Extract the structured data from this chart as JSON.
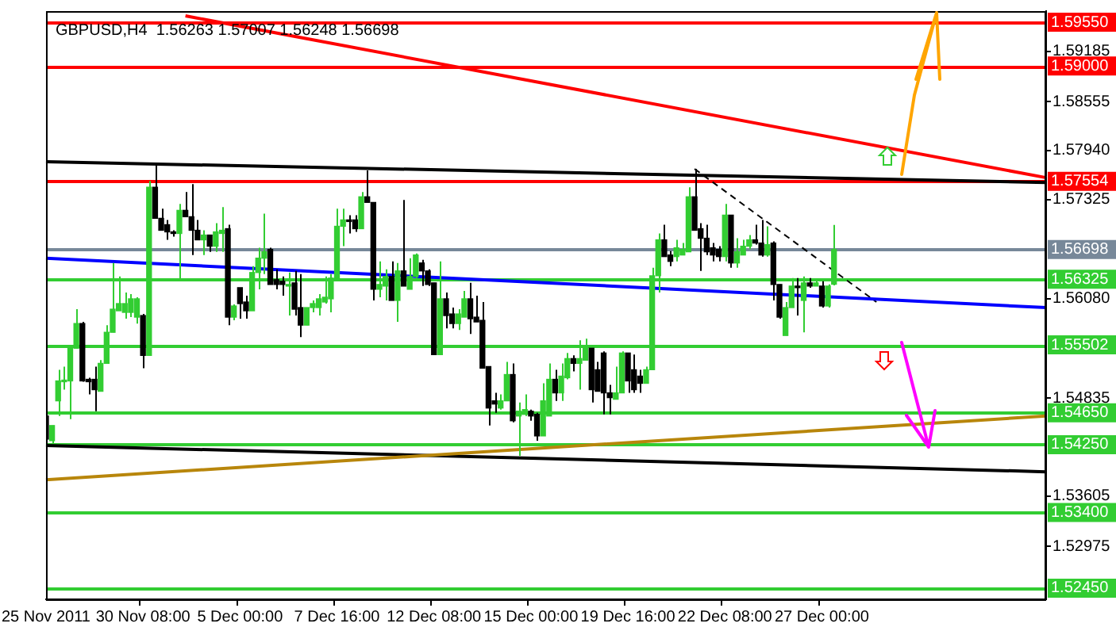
{
  "chart_data": {
    "type": "candlestick",
    "title": "GBPUSD,H4  1.56263 1.57007 1.56248 1.56698",
    "categories": [
      "25 Nov 2011",
      null,
      null,
      null,
      null,
      null,
      null,
      null,
      null,
      null,
      null,
      null,
      null,
      null,
      null,
      null,
      "30 Nov 08:00",
      null,
      null,
      null,
      null,
      null,
      null,
      null,
      null,
      null,
      null,
      null,
      null,
      null,
      null,
      null,
      "5 Dec 00:00",
      null,
      null,
      null,
      null,
      null,
      null,
      null,
      null,
      null,
      null,
      null,
      null,
      null,
      null,
      null,
      "7 Dec 16:00",
      null,
      null,
      null,
      null,
      null,
      null,
      null,
      null,
      null,
      null,
      null,
      null,
      null,
      null,
      null,
      "12 Dec 08:00",
      null,
      null,
      null,
      null,
      null,
      null,
      null,
      null,
      null,
      null,
      null,
      null,
      null,
      null,
      null,
      "15 Dec 00:00",
      null,
      null,
      null,
      null,
      null,
      null,
      null,
      null,
      null,
      null,
      null,
      null,
      null,
      null,
      null,
      "19 Dec 16:00",
      null,
      null,
      null,
      null,
      null,
      null,
      null,
      null,
      null,
      null,
      null,
      null,
      null,
      null,
      null,
      "22 Dec 08:00",
      null,
      null,
      null,
      null,
      null,
      null,
      null,
      null,
      null,
      null,
      null,
      null,
      null,
      null,
      null,
      "27 Dec 00:00",
      null,
      null,
      null,
      null,
      null,
      null,
      null,
      null,
      null,
      null,
      null,
      null,
      null,
      null,
      null,
      null,
      null,
      null,
      null,
      null,
      null,
      null,
      null,
      null,
      null,
      null,
      null,
      null,
      null,
      null,
      null,
      null,
      null,
      null,
      null,
      null,
      null
    ],
    "ohlc": [
      [
        1.5461,
        1.5517,
        1.5428,
        1.5432
      ],
      [
        1.543,
        1.5449,
        1.5426,
        1.5449
      ],
      [
        1.548,
        1.5519,
        1.5461,
        1.5505
      ],
      [
        1.5504,
        1.5523,
        1.5494,
        1.5505
      ],
      [
        1.5505,
        1.5546,
        1.5457,
        1.5546
      ],
      [
        1.5546,
        1.5595,
        1.5546,
        1.5577
      ],
      [
        1.5577,
        1.5579,
        1.5504,
        1.5505
      ],
      [
        1.5507,
        1.5509,
        1.5488,
        1.5504
      ],
      [
        1.5507,
        1.5523,
        1.5467,
        1.5494
      ],
      [
        1.5492,
        1.5531,
        1.5492,
        1.5527
      ],
      [
        1.5527,
        1.5575,
        1.5527,
        1.5566
      ],
      [
        1.5566,
        1.5653,
        1.5566,
        1.5595
      ],
      [
        1.5593,
        1.5636,
        1.5593,
        1.5602
      ],
      [
        1.5591,
        1.5616,
        1.5583,
        1.5602
      ],
      [
        1.5591,
        1.5614,
        1.5585,
        1.5608
      ],
      [
        1.5585,
        1.561,
        1.5577,
        1.5608
      ],
      [
        1.5587,
        1.5589,
        1.5521,
        1.5537
      ],
      [
        1.5537,
        1.5756,
        1.5537,
        1.5748
      ],
      [
        1.5748,
        1.5779,
        1.5709,
        1.5709
      ],
      [
        1.5709,
        1.5721,
        1.5694,
        1.5694
      ],
      [
        1.5701,
        1.5707,
        1.5682,
        1.5692
      ],
      [
        1.5692,
        1.5694,
        1.5686,
        1.569
      ],
      [
        1.569,
        1.5727,
        1.5632,
        1.5719
      ],
      [
        1.5719,
        1.5742,
        1.5711,
        1.5711
      ],
      [
        1.5711,
        1.5752,
        1.5663,
        1.5694
      ],
      [
        1.5694,
        1.5707,
        1.5682,
        1.5682
      ],
      [
        1.5682,
        1.5694,
        1.5663,
        1.5688
      ],
      [
        1.5688,
        1.5688,
        1.5667,
        1.5674
      ],
      [
        1.5674,
        1.5703,
        1.5667,
        1.5692
      ],
      [
        1.569,
        1.5723,
        1.5667,
        1.5694
      ],
      [
        1.5696,
        1.5701,
        1.5575,
        1.5585
      ],
      [
        1.5585,
        1.5601,
        1.5581,
        1.5599
      ],
      [
        1.5622,
        1.5622,
        1.5583,
        1.5602
      ],
      [
        1.5604,
        1.5612,
        1.5583,
        1.5593
      ],
      [
        1.5593,
        1.5649,
        1.5593,
        1.5641
      ],
      [
        1.5641,
        1.5672,
        1.562,
        1.5659
      ],
      [
        1.5659,
        1.5715,
        1.5639,
        1.5667
      ],
      [
        1.567,
        1.5672,
        1.5626,
        1.5626
      ],
      [
        1.5632,
        1.5645,
        1.562,
        1.5626
      ],
      [
        1.563,
        1.5636,
        1.5612,
        1.5626
      ],
      [
        1.5624,
        1.5641,
        1.5587,
        1.5626
      ],
      [
        1.5628,
        1.5643,
        1.5587,
        1.5595
      ],
      [
        1.5597,
        1.5639,
        1.556,
        1.5575
      ],
      [
        1.5575,
        1.5597,
        1.5575,
        1.5597
      ],
      [
        1.5597,
        1.5606,
        1.5591,
        1.5602
      ],
      [
        1.5597,
        1.5614,
        1.5587,
        1.5608
      ],
      [
        1.5604,
        1.5636,
        1.5602,
        1.561
      ],
      [
        1.5608,
        1.5639,
        1.5591,
        1.5634
      ],
      [
        1.5634,
        1.5721,
        1.563,
        1.5699
      ],
      [
        1.5699,
        1.5721,
        1.5674,
        1.5707
      ],
      [
        1.5707,
        1.5713,
        1.569,
        1.5705
      ],
      [
        1.5707,
        1.5713,
        1.5692,
        1.5696
      ],
      [
        1.5696,
        1.5742,
        1.5696,
        1.5736
      ],
      [
        1.5736,
        1.5769,
        1.5729,
        1.5729
      ],
      [
        1.5729,
        1.5729,
        1.5606,
        1.562
      ],
      [
        1.562,
        1.5655,
        1.561,
        1.5626
      ],
      [
        1.5624,
        1.5645,
        1.5606,
        1.5636
      ],
      [
        1.5636,
        1.5655,
        1.5606,
        1.5606
      ],
      [
        1.5606,
        1.5653,
        1.5579,
        1.5643
      ],
      [
        1.5643,
        1.5732,
        1.5624,
        1.5624
      ],
      [
        1.562,
        1.5659,
        1.562,
        1.5636
      ],
      [
        1.5636,
        1.5665,
        1.5634,
        1.5663
      ],
      [
        1.5653,
        1.5657,
        1.5624,
        1.5643
      ],
      [
        1.5643,
        1.5645,
        1.5624,
        1.5626
      ],
      [
        1.5628,
        1.5628,
        1.5538,
        1.5538
      ],
      [
        1.5538,
        1.5655,
        1.5538,
        1.5608
      ],
      [
        1.5608,
        1.5616,
        1.5571,
        1.5587
      ],
      [
        1.5589,
        1.5597,
        1.5571,
        1.5577
      ],
      [
        1.5577,
        1.5595,
        1.5569,
        1.5589
      ],
      [
        1.5585,
        1.5618,
        1.5585,
        1.5608
      ],
      [
        1.5608,
        1.5628,
        1.5564,
        1.5583
      ],
      [
        1.5585,
        1.5612,
        1.5579,
        1.5579
      ],
      [
        1.5581,
        1.5604,
        1.5521,
        1.5521
      ],
      [
        1.5523,
        1.5523,
        1.5449,
        1.5471
      ],
      [
        1.548,
        1.549,
        1.5465,
        1.5476
      ],
      [
        1.5471,
        1.5488,
        1.5469,
        1.548
      ],
      [
        1.548,
        1.5529,
        1.548,
        1.5513
      ],
      [
        1.5513,
        1.5527,
        1.5453,
        1.5455
      ],
      [
        1.5461,
        1.5478,
        1.5411,
        1.5467
      ],
      [
        1.5463,
        1.5488,
        1.5461,
        1.5469
      ],
      [
        1.5467,
        1.5469,
        1.5455,
        1.5461
      ],
      [
        1.5463,
        1.5465,
        1.543,
        1.5436
      ],
      [
        1.5436,
        1.5502,
        1.5436,
        1.548
      ],
      [
        1.5461,
        1.5527,
        1.5461,
        1.5507
      ],
      [
        1.5507,
        1.5519,
        1.548,
        1.549
      ],
      [
        1.549,
        1.5527,
        1.548,
        1.5511
      ],
      [
        1.5509,
        1.554,
        1.5507,
        1.5533
      ],
      [
        1.5533,
        1.5537,
        1.5517,
        1.5527
      ],
      [
        1.5527,
        1.5556,
        1.5494,
        1.5533
      ],
      [
        1.5531,
        1.5558,
        1.5531,
        1.5546
      ],
      [
        1.5546,
        1.5546,
        1.5478,
        1.5494
      ],
      [
        1.5519,
        1.5529,
        1.5492,
        1.5492
      ],
      [
        1.554,
        1.5542,
        1.5463,
        1.549
      ],
      [
        1.549,
        1.55,
        1.5463,
        1.5484
      ],
      [
        1.5482,
        1.5523,
        1.5482,
        1.549
      ],
      [
        1.549,
        1.5542,
        1.549,
        1.554
      ],
      [
        1.554,
        1.554,
        1.549,
        1.5505
      ],
      [
        1.5519,
        1.5538,
        1.549,
        1.5494
      ],
      [
        1.5511,
        1.5519,
        1.549,
        1.5502
      ],
      [
        1.5502,
        1.5523,
        1.5502,
        1.5519
      ],
      [
        1.5519,
        1.5647,
        1.5519,
        1.5637
      ],
      [
        1.5637,
        1.569,
        1.5616,
        1.5682
      ],
      [
        1.5682,
        1.5701,
        1.5661,
        1.5661
      ],
      [
        1.5663,
        1.5668,
        1.5649,
        1.5655
      ],
      [
        1.5661,
        1.5682,
        1.5655,
        1.5672
      ],
      [
        1.5663,
        1.5678,
        1.5663,
        1.567
      ],
      [
        1.5667,
        1.5748,
        1.5667,
        1.5736
      ],
      [
        1.5736,
        1.5771,
        1.5694,
        1.5694
      ],
      [
        1.5696,
        1.5703,
        1.5643,
        1.5684
      ],
      [
        1.5684,
        1.5701,
        1.5663,
        1.5667
      ],
      [
        1.5672,
        1.5678,
        1.5655,
        1.5663
      ],
      [
        1.567,
        1.5674,
        1.5655,
        1.5661
      ],
      [
        1.5661,
        1.5727,
        1.5655,
        1.5713
      ],
      [
        1.5713,
        1.5713,
        1.5647,
        1.5653
      ],
      [
        1.5653,
        1.5684,
        1.5647,
        1.5667
      ],
      [
        1.5663,
        1.5682,
        1.5663,
        1.5674
      ],
      [
        1.5674,
        1.5688,
        1.567,
        1.5682
      ],
      [
        1.5682,
        1.5701,
        1.5676,
        1.5678
      ],
      [
        1.5678,
        1.5707,
        1.5661,
        1.5663
      ],
      [
        1.5663,
        1.5699,
        1.5661,
        1.5676
      ],
      [
        1.5678,
        1.568,
        1.5606,
        1.5626
      ],
      [
        1.5626,
        1.5626,
        1.5583,
        1.5585
      ],
      [
        1.5562,
        1.5604,
        1.5562,
        1.5597
      ],
      [
        1.5597,
        1.5634,
        1.5597,
        1.5624
      ],
      [
        1.5624,
        1.5634,
        1.5587,
        1.5622
      ],
      [
        1.5606,
        1.5636,
        1.5566,
        1.5628
      ],
      [
        1.5628,
        1.5634,
        1.5622,
        1.5624
      ],
      [
        1.5624,
        1.563,
        1.5624,
        1.5628
      ],
      [
        1.5624,
        1.563,
        1.5597,
        1.5599
      ],
      [
        1.5599,
        1.5626,
        1.5597,
        1.5624
      ],
      [
        1.56263,
        1.57007,
        1.56248,
        1.56698
      ],
      null,
      null,
      null,
      null,
      null,
      null,
      null,
      null,
      null,
      null,
      null,
      null,
      null,
      null,
      null,
      null,
      null,
      null,
      null,
      null,
      null,
      null,
      null,
      null,
      null,
      null,
      null,
      null,
      null,
      null,
      null,
      null,
      null,
      null,
      null
    ],
    "colors": [
      "#000000",
      "#32cd32",
      "#32cd32",
      "#32cd32",
      "#32cd32",
      "#32cd32",
      "#000000",
      "#000000",
      "#000000",
      "#32cd32",
      "#32cd32",
      "#32cd32",
      "#32cd32",
      "#32cd32",
      "#32cd32",
      "#32cd32",
      "#000000",
      "#32cd32",
      "#000000",
      "#000000",
      "#000000",
      "#000000",
      "#32cd32",
      "#000000",
      "#000000",
      "#000000",
      "#32cd32",
      "#000000",
      "#32cd32",
      "#32cd32",
      "#000000",
      "#32cd32",
      "#000000",
      "#000000",
      "#32cd32",
      "#32cd32",
      "#32cd32",
      "#000000",
      "#000000",
      "#000000",
      "#32cd32",
      "#000000",
      "#000000",
      "#32cd32",
      "#32cd32",
      "#32cd32",
      "#32cd32",
      "#32cd32",
      "#32cd32",
      "#32cd32",
      "#000000",
      "#000000",
      "#32cd32",
      "#000000",
      "#000000",
      "#32cd32",
      "#32cd32",
      "#000000",
      "#32cd32",
      "#000000",
      "#32cd32",
      "#32cd32",
      "#000000",
      "#000000",
      "#000000",
      "#32cd32",
      "#000000",
      "#000000",
      "#32cd32",
      "#32cd32",
      "#000000",
      "#000000",
      "#000000",
      "#000000",
      "#000000",
      "#32cd32",
      "#32cd32",
      "#000000",
      "#32cd32",
      "#32cd32",
      "#000000",
      "#000000",
      "#32cd32",
      "#32cd32",
      "#000000",
      "#32cd32",
      "#32cd32",
      "#000000",
      "#32cd32",
      "#32cd32",
      "#000000",
      "#000000",
      "#000000",
      "#000000",
      "#32cd32",
      "#32cd32",
      "#000000",
      "#000000",
      "#000000",
      "#32cd32",
      "#32cd32",
      "#32cd32",
      "#000000",
      "#000000",
      "#32cd32",
      "#32cd32",
      "#32cd32",
      "#000000",
      "#000000",
      "#000000",
      "#000000",
      "#000000",
      "#32cd32",
      "#000000",
      "#32cd32",
      "#32cd32",
      "#32cd32",
      "#000000",
      "#000000",
      "#32cd32",
      "#000000",
      "#000000",
      "#32cd32",
      "#32cd32",
      "#000000",
      "#32cd32",
      "#000000",
      "#32cd32",
      "#000000",
      "#32cd32",
      "#32cd32",
      null,
      null,
      null,
      null,
      null,
      null,
      null,
      null,
      null,
      null,
      null,
      null,
      null,
      null,
      null,
      null,
      null,
      null,
      null,
      null,
      null,
      null,
      null,
      null,
      null,
      null,
      null,
      null,
      null,
      null,
      null,
      null,
      null,
      null,
      null
    ],
    "series": [
      {
        "type": "line",
        "color": "#ff0000",
        "values": [
          null,
          null,
          null,
          null,
          null,
          null,
          null,
          null,
          null,
          null,
          null,
          null,
          null,
          null,
          null,
          null,
          null,
          null,
          null,
          null,
          null,
          null,
          null,
          1.5963,
          null,
          null,
          null,
          null,
          null,
          null,
          null,
          null,
          null,
          null,
          null,
          null,
          null,
          null,
          null,
          null,
          null,
          null,
          null,
          null,
          null,
          null,
          null,
          null,
          null,
          null,
          null,
          null,
          null,
          null,
          null,
          null,
          null,
          null,
          null,
          null,
          null,
          null,
          null,
          null,
          null,
          null,
          null,
          null,
          null,
          null,
          null,
          null,
          null,
          null,
          null,
          null,
          null,
          null,
          null,
          null,
          null,
          null,
          null,
          null,
          null,
          null,
          null,
          null,
          null,
          null,
          null,
          null,
          null,
          null,
          null,
          null,
          null,
          null,
          null,
          null,
          null,
          null,
          null,
          null,
          null,
          null,
          null,
          null,
          null,
          null,
          null,
          null,
          null,
          null,
          null,
          null,
          null,
          null,
          null,
          null,
          null,
          null,
          null,
          null,
          null,
          null,
          null,
          null,
          null,
          null,
          null,
          null,
          null,
          null,
          null,
          null,
          null,
          null,
          null,
          null,
          null,
          null,
          null,
          null,
          null,
          null,
          null,
          null,
          null,
          null,
          null,
          null,
          null,
          null,
          null,
          null,
          null,
          null,
          null,
          null,
          null,
          null,
          null,
          null,
          null,
          1.576
        ]
      },
      {
        "type": "line",
        "color": "#000000",
        "values": [
          1.578,
          null,
          null,
          null,
          null,
          null,
          null,
          null,
          null,
          null,
          null,
          null,
          null,
          null,
          null,
          null,
          null,
          null,
          null,
          null,
          null,
          null,
          null,
          null,
          null,
          null,
          null,
          null,
          null,
          null,
          null,
          null,
          null,
          null,
          null,
          null,
          null,
          null,
          null,
          null,
          null,
          null,
          null,
          null,
          null,
          null,
          null,
          null,
          null,
          null,
          null,
          null,
          null,
          null,
          null,
          null,
          null,
          null,
          null,
          null,
          null,
          null,
          null,
          null,
          null,
          null,
          null,
          null,
          null,
          null,
          null,
          null,
          null,
          null,
          null,
          null,
          null,
          null,
          null,
          null,
          null,
          null,
          null,
          null,
          null,
          null,
          null,
          null,
          null,
          null,
          null,
          null,
          null,
          null,
          null,
          null,
          null,
          null,
          null,
          null,
          null,
          null,
          null,
          null,
          null,
          null,
          null,
          null,
          null,
          null,
          null,
          null,
          null,
          null,
          null,
          null,
          null,
          null,
          null,
          null,
          null,
          null,
          null,
          null,
          null,
          null,
          null,
          null,
          null,
          null,
          null,
          null,
          null,
          null,
          null,
          null,
          null,
          null,
          null,
          null,
          null,
          null,
          null,
          null,
          null,
          null,
          null,
          null,
          null,
          null,
          null,
          null,
          null,
          null,
          null,
          null,
          null,
          null,
          null,
          null,
          null,
          null,
          null,
          null,
          null,
          1.5754
        ]
      },
      {
        "type": "line",
        "color": "#0000ff",
        "values": [
          1.5659,
          null,
          null,
          null,
          null,
          null,
          null,
          null,
          null,
          null,
          null,
          null,
          null,
          null,
          null,
          null,
          null,
          null,
          null,
          null,
          null,
          null,
          null,
          null,
          null,
          null,
          null,
          null,
          null,
          null,
          null,
          null,
          null,
          null,
          null,
          null,
          null,
          null,
          null,
          null,
          null,
          null,
          null,
          null,
          null,
          null,
          null,
          null,
          null,
          null,
          null,
          null,
          null,
          null,
          null,
          null,
          null,
          null,
          null,
          null,
          null,
          null,
          null,
          null,
          null,
          null,
          null,
          null,
          null,
          null,
          null,
          null,
          null,
          null,
          null,
          null,
          null,
          null,
          null,
          null,
          null,
          null,
          null,
          null,
          null,
          null,
          null,
          null,
          null,
          null,
          null,
          null,
          null,
          null,
          null,
          null,
          null,
          null,
          null,
          null,
          null,
          null,
          null,
          null,
          null,
          null,
          null,
          null,
          null,
          null,
          null,
          null,
          null,
          null,
          null,
          null,
          null,
          null,
          null,
          null,
          null,
          null,
          null,
          null,
          null,
          null,
          null,
          null,
          null,
          null,
          null,
          null,
          null,
          null,
          null,
          null,
          null,
          null,
          null,
          null,
          null,
          null,
          null,
          null,
          null,
          null,
          null,
          null,
          null,
          null,
          null,
          null,
          null,
          null,
          null,
          null,
          null,
          null,
          null,
          null,
          null,
          null,
          null,
          null,
          null,
          1.5597
        ]
      },
      {
        "type": "line",
        "color": "#b8860b",
        "values": [
          1.5381,
          null,
          null,
          null,
          null,
          null,
          null,
          null,
          null,
          null,
          null,
          null,
          null,
          null,
          null,
          null,
          null,
          null,
          null,
          null,
          null,
          null,
          null,
          null,
          null,
          null,
          null,
          null,
          null,
          null,
          null,
          null,
          null,
          null,
          null,
          null,
          null,
          null,
          null,
          null,
          null,
          null,
          null,
          null,
          null,
          null,
          null,
          null,
          null,
          null,
          null,
          null,
          null,
          null,
          null,
          null,
          null,
          null,
          null,
          null,
          null,
          null,
          null,
          null,
          null,
          null,
          null,
          null,
          null,
          null,
          null,
          null,
          null,
          null,
          null,
          null,
          null,
          null,
          null,
          null,
          null,
          null,
          null,
          null,
          null,
          null,
          null,
          null,
          null,
          null,
          null,
          null,
          null,
          null,
          null,
          null,
          null,
          null,
          null,
          null,
          null,
          null,
          null,
          null,
          null,
          null,
          null,
          null,
          null,
          null,
          null,
          null,
          null,
          null,
          null,
          null,
          null,
          null,
          null,
          null,
          null,
          null,
          null,
          null,
          null,
          null,
          null,
          null,
          null,
          null,
          null,
          null,
          null,
          null,
          null,
          null,
          null,
          null,
          null,
          null,
          null,
          null,
          null,
          null,
          null,
          null,
          null,
          null,
          null,
          null,
          null,
          null,
          null,
          null,
          null,
          null,
          null,
          null,
          null,
          null,
          null,
          null,
          null,
          null,
          null,
          1.5461
        ]
      },
      {
        "type": "line",
        "color": "#000000",
        "values": [
          1.5424,
          null,
          null,
          null,
          null,
          null,
          null,
          null,
          null,
          null,
          null,
          null,
          null,
          null,
          null,
          null,
          null,
          null,
          null,
          null,
          null,
          null,
          null,
          null,
          null,
          null,
          null,
          null,
          null,
          null,
          null,
          null,
          null,
          null,
          null,
          null,
          null,
          null,
          null,
          null,
          null,
          null,
          null,
          null,
          null,
          null,
          null,
          null,
          null,
          null,
          null,
          null,
          null,
          null,
          null,
          null,
          null,
          null,
          null,
          null,
          null,
          null,
          null,
          null,
          null,
          null,
          null,
          null,
          null,
          null,
          null,
          null,
          null,
          null,
          null,
          null,
          null,
          null,
          null,
          null,
          null,
          null,
          null,
          null,
          null,
          null,
          null,
          null,
          null,
          null,
          null,
          null,
          null,
          null,
          null,
          null,
          null,
          null,
          null,
          null,
          null,
          null,
          null,
          null,
          null,
          null,
          null,
          null,
          null,
          null,
          null,
          null,
          null,
          null,
          null,
          null,
          null,
          null,
          null,
          null,
          null,
          null,
          null,
          null,
          null,
          null,
          null,
          null,
          null,
          null,
          null,
          null,
          null,
          null,
          null,
          null,
          null,
          null,
          null,
          null,
          null,
          null,
          null,
          null,
          null,
          null,
          null,
          null,
          null,
          null,
          null,
          null,
          null,
          null,
          null,
          null,
          null,
          null,
          null,
          null,
          null,
          null,
          null,
          null,
          null,
          1.5391
        ]
      },
      {
        "type": "line",
        "color": "#000000",
        "line_style": "dashed",
        "values": [
          null,
          null,
          null,
          null,
          null,
          null,
          null,
          null,
          null,
          null,
          null,
          null,
          null,
          null,
          null,
          null,
          null,
          null,
          null,
          null,
          null,
          null,
          null,
          null,
          null,
          null,
          null,
          null,
          null,
          null,
          null,
          null,
          null,
          null,
          null,
          null,
          null,
          null,
          null,
          null,
          null,
          null,
          null,
          null,
          null,
          null,
          null,
          null,
          null,
          null,
          null,
          null,
          null,
          null,
          null,
          null,
          null,
          null,
          null,
          null,
          null,
          null,
          null,
          null,
          null,
          null,
          null,
          null,
          null,
          null,
          null,
          null,
          null,
          null,
          null,
          null,
          null,
          null,
          null,
          null,
          null,
          null,
          null,
          null,
          null,
          null,
          null,
          null,
          null,
          null,
          null,
          null,
          null,
          null,
          null,
          null,
          null,
          null,
          null,
          null,
          null,
          null,
          null,
          null,
          null,
          null,
          null,
          1.5771,
          null,
          null,
          null,
          null,
          null,
          null,
          null,
          null,
          null,
          null,
          null,
          null,
          null,
          null,
          null,
          null,
          null,
          null,
          null,
          null,
          null,
          null,
          null,
          null,
          null,
          null,
          null,
          null,
          null,
          1.5604,
          null,
          null,
          null,
          null,
          null,
          null,
          null,
          null,
          null,
          null,
          null,
          null,
          null,
          null,
          null,
          null,
          null,
          null,
          null,
          null,
          null,
          null,
          null,
          null,
          null,
          null,
          null,
          null
        ]
      }
    ],
    "ref_lines": [
      {
        "axis": "y",
        "value": 1.5955,
        "label": "1.59550",
        "color": "#ff0000"
      },
      {
        "axis": "y",
        "value": 1.59,
        "label": "1.59000",
        "color": "#ff0000"
      },
      {
        "axis": "y",
        "value": 1.57554,
        "label": "1.57554",
        "color": "#ff0000"
      },
      {
        "axis": "y",
        "value": 1.56698,
        "label": "1.56698",
        "color": "#778899"
      },
      {
        "axis": "y",
        "value": 1.56325,
        "label": "1.56325",
        "color": "#32cd32"
      },
      {
        "axis": "y",
        "value": 1.55502,
        "label": "1.55502",
        "color": "#32cd32"
      },
      {
        "axis": "y",
        "value": 1.5465,
        "label": "1.54650",
        "color": "#32cd32"
      },
      {
        "axis": "y",
        "value": 1.5425,
        "label": "1.54250",
        "color": "#32cd32"
      },
      {
        "axis": "y",
        "value": 1.534,
        "label": "1.53400",
        "color": "#32cd32"
      },
      {
        "axis": "y",
        "value": 1.5245,
        "label": "1.52450",
        "color": "#32cd32"
      }
    ],
    "ylim": [
      1.5231,
      1.5969
    ],
    "yticks": [
      1.52975,
      1.53605,
      1.54835,
      {
        "value": 1.5608,
        "label": "1.56080"
      },
      1.57325,
      {
        "value": 1.5794,
        "label": "1.57940"
      },
      1.58555,
      1.59185
    ],
    "grid": false,
    "legend": false
  }
}
